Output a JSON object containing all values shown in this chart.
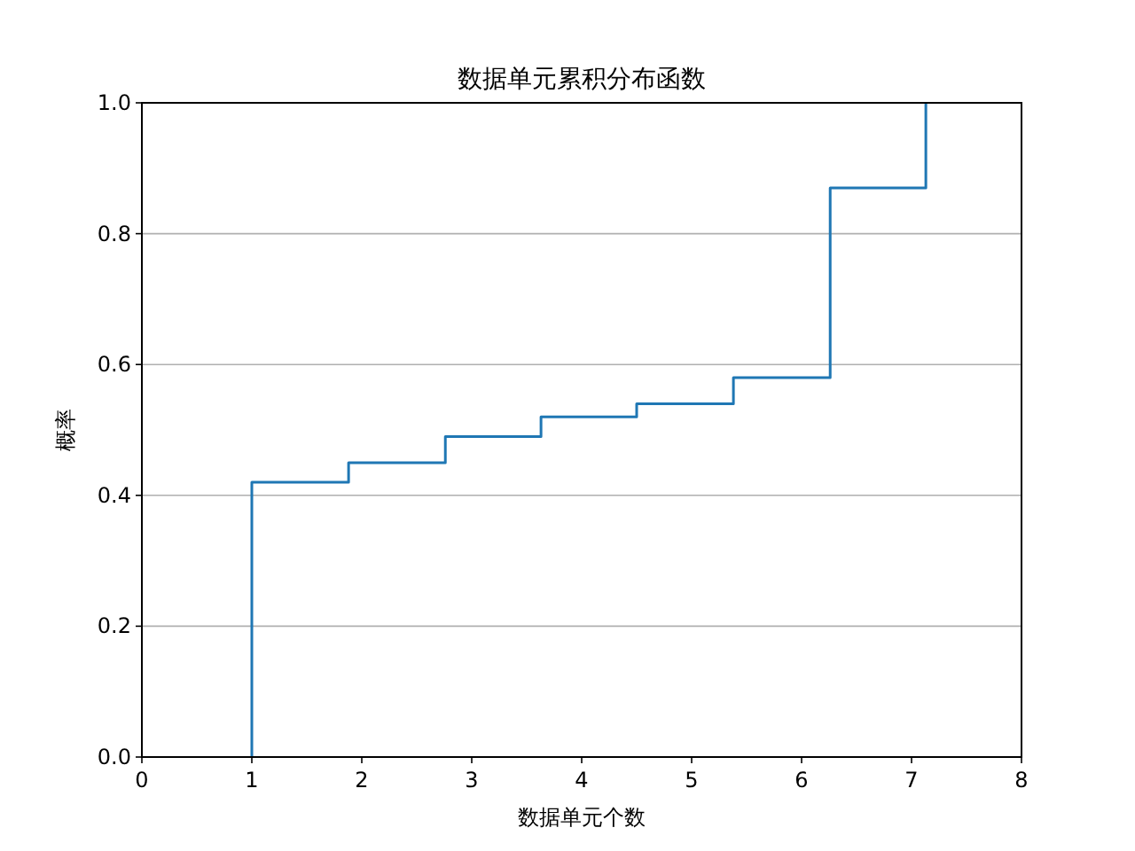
{
  "chart_data": {
    "type": "step",
    "title": "数据单元累积分布函数",
    "xlabel": "数据单元个数",
    "ylabel": "概率",
    "x": [
      1.0,
      1.0,
      1.88,
      2.76,
      3.63,
      4.5,
      5.38,
      6.26,
      7.13
    ],
    "series": [
      {
        "color": "#1f77b4",
        "values": [
          0,
          0.42,
          0.45,
          0.49,
          0.52,
          0.54,
          0.58,
          0.87,
          1.0
        ]
      }
    ],
    "xlim": [
      0,
      8
    ],
    "ylim": [
      0,
      1
    ],
    "xticks": [
      0,
      1,
      2,
      3,
      4,
      5,
      6,
      7,
      8
    ],
    "yticks": [
      {
        "value": 0,
        "label": "0.0"
      },
      {
        "value": 0.2,
        "label": "0.2"
      },
      {
        "value": 0.4,
        "label": "0.4"
      },
      {
        "value": 0.6,
        "label": "0.6"
      },
      {
        "value": 0.8,
        "label": "0.8"
      },
      {
        "value": 1,
        "label": "1.0"
      }
    ],
    "grid": "y"
  }
}
